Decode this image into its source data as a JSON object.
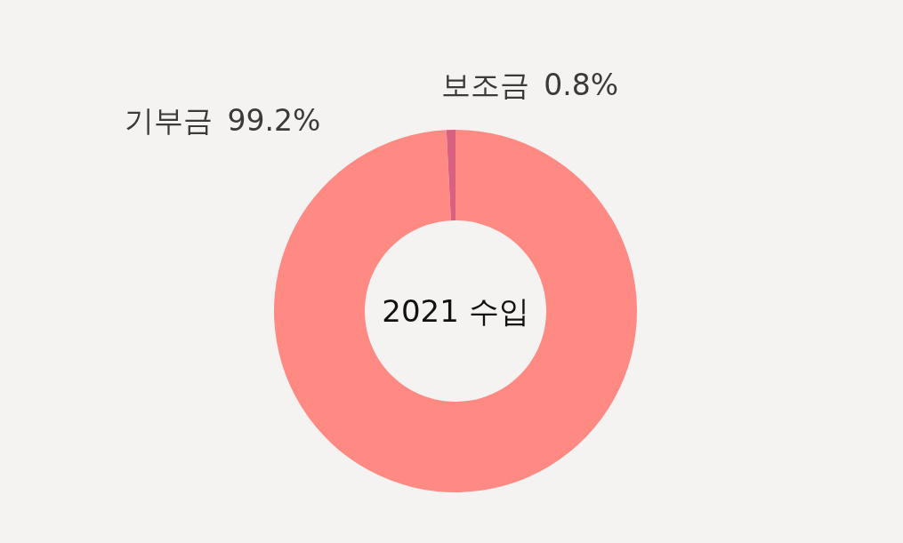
{
  "chart_data": {
    "type": "donut",
    "title": "2021 수입",
    "categories": [
      "기부금",
      "보조금"
    ],
    "values": [
      99.2,
      0.8
    ],
    "value_labels": [
      "99.2%",
      "0.8%"
    ],
    "colors": [
      "#ff8a84",
      "#d9607f"
    ]
  }
}
